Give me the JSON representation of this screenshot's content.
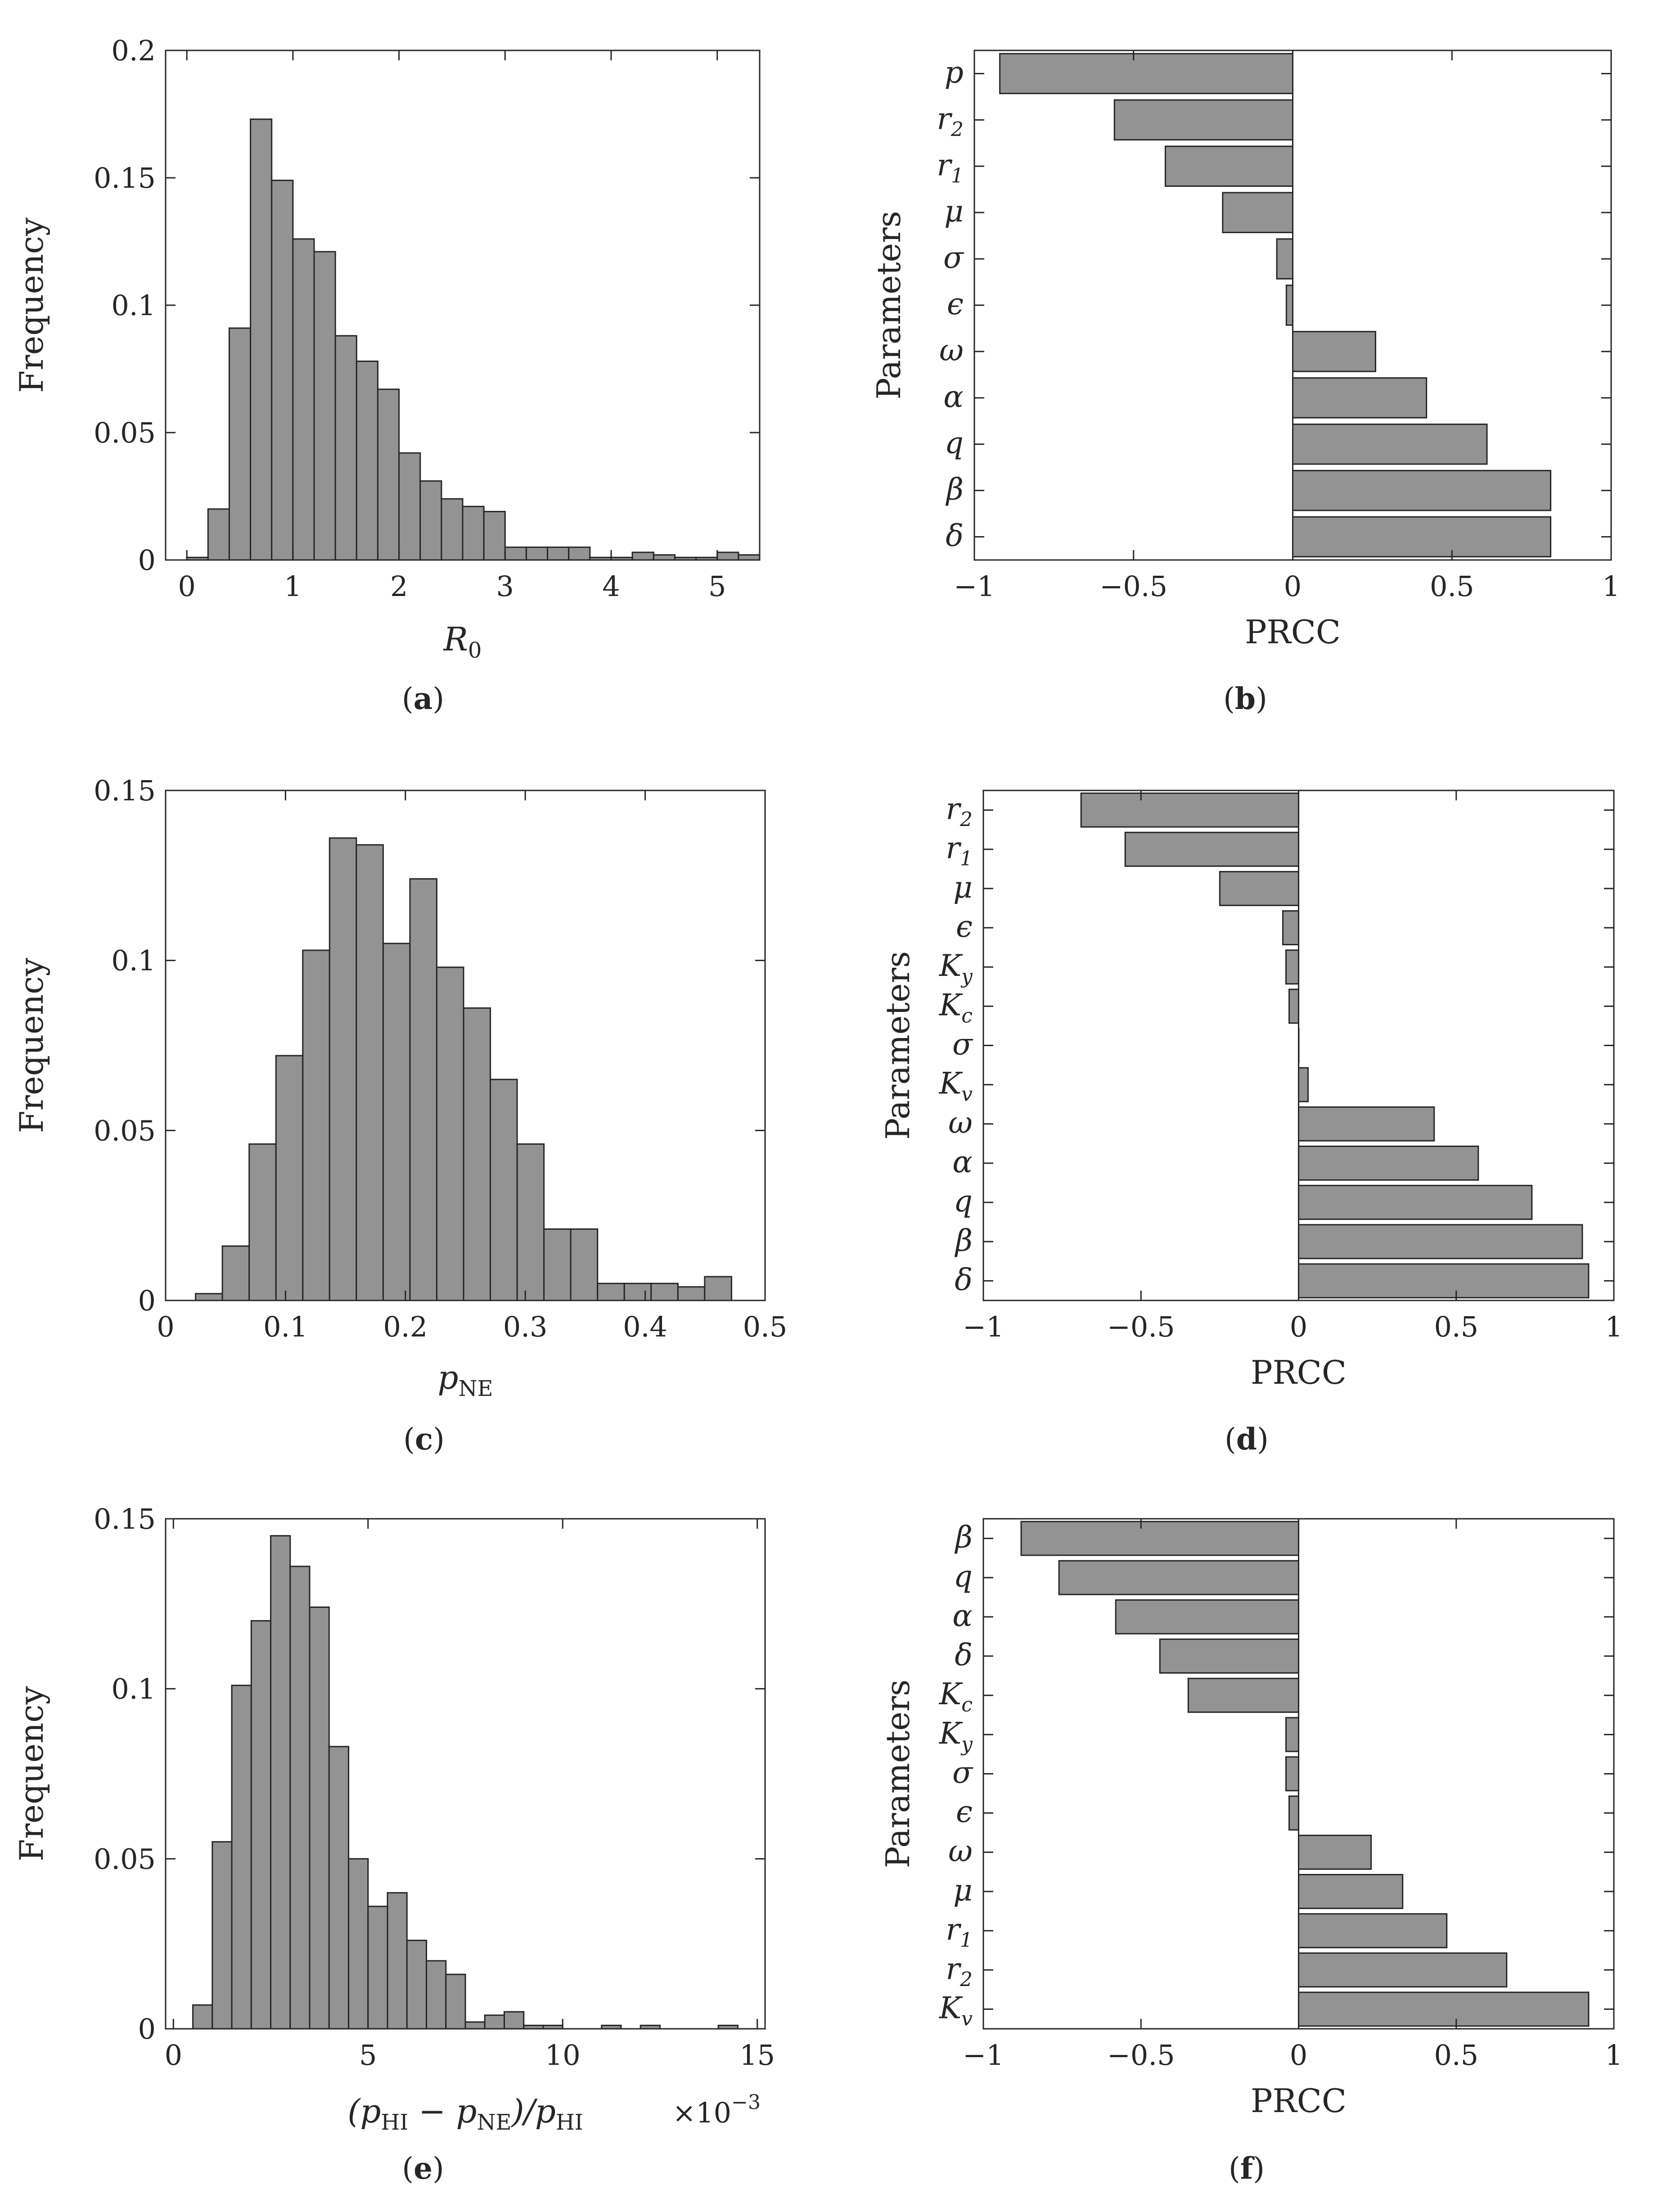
{
  "colors": {
    "bar_fill": "#939393",
    "bar_edge": "#262626",
    "axis": "#262626",
    "text": "#262626"
  },
  "chart_data": [
    {
      "id": "a",
      "type": "histogram",
      "caption_label": "a",
      "ylabel": "Frequency",
      "xlabel": {
        "main": "R",
        "sub": "0"
      },
      "xlim": [
        -0.2,
        5.4
      ],
      "ylim": [
        0,
        0.2
      ],
      "xticks": [
        0,
        1,
        2,
        3,
        4,
        5
      ],
      "xtick_labels": [
        "0",
        "1",
        "2",
        "3",
        "4",
        "5"
      ],
      "yticks": [
        0,
        0.05,
        0.1,
        0.15,
        0.2
      ],
      "ytick_labels": [
        "0",
        "0.05",
        "0.1",
        "0.15",
        "0.2"
      ],
      "bin_start": 0,
      "bin_width": 0.2,
      "values": [
        0.001,
        0.02,
        0.091,
        0.173,
        0.149,
        0.126,
        0.121,
        0.088,
        0.078,
        0.067,
        0.042,
        0.031,
        0.024,
        0.021,
        0.019,
        0.005,
        0.005,
        0.005,
        0.005,
        0.001,
        0.001,
        0.003,
        0.002,
        0.001,
        0.001,
        0.003,
        0.002
      ]
    },
    {
      "id": "b",
      "type": "horizontal_bar",
      "caption_label": "b",
      "xlabel": "PRCC",
      "ylabel": "Parameters",
      "xlim": [
        -1,
        1
      ],
      "xticks": [
        -1,
        -0.5,
        0,
        0.5,
        1
      ],
      "xtick_labels": [
        "−1",
        "−0.5",
        "0",
        "0.5",
        "1"
      ],
      "parameters": [
        {
          "symbol": "p",
          "sub": "",
          "value": -0.92
        },
        {
          "symbol": "r",
          "sub": "2",
          "value": -0.56
        },
        {
          "symbol": "r",
          "sub": "1",
          "value": -0.4
        },
        {
          "symbol": "μ",
          "sub": "",
          "value": -0.22
        },
        {
          "symbol": "σ",
          "sub": "",
          "value": -0.05
        },
        {
          "symbol": "ϵ",
          "sub": "",
          "value": -0.02
        },
        {
          "symbol": "ω",
          "sub": "",
          "value": 0.26
        },
        {
          "symbol": "α",
          "sub": "",
          "value": 0.42
        },
        {
          "symbol": "q",
          "sub": "",
          "value": 0.61
        },
        {
          "symbol": "β",
          "sub": "",
          "value": 0.81
        },
        {
          "symbol": "δ",
          "sub": "",
          "value": 0.81
        }
      ]
    },
    {
      "id": "c",
      "type": "histogram",
      "caption_label": "c",
      "ylabel": "Frequency",
      "xlabel": {
        "main": "p",
        "sub": "NE"
      },
      "xlim": [
        0,
        0.5
      ],
      "ylim": [
        0,
        0.15
      ],
      "xticks": [
        0,
        0.1,
        0.2,
        0.3,
        0.4,
        0.5
      ],
      "xtick_labels": [
        "0",
        "0.1",
        "0.2",
        "0.3",
        "0.4",
        "0.5"
      ],
      "yticks": [
        0,
        0.05,
        0.1,
        0.15
      ],
      "ytick_labels": [
        "0",
        "0.05",
        "0.1",
        "0.15"
      ],
      "bin_start": 0.025,
      "bin_width": 0.02235,
      "values": [
        0.002,
        0.016,
        0.046,
        0.072,
        0.103,
        0.136,
        0.134,
        0.105,
        0.124,
        0.098,
        0.086,
        0.065,
        0.046,
        0.021,
        0.021,
        0.005,
        0.005,
        0.005,
        0.004,
        0.007
      ]
    },
    {
      "id": "d",
      "type": "horizontal_bar",
      "caption_label": "d",
      "xlabel": "PRCC",
      "ylabel": "Parameters",
      "xlim": [
        -1,
        1
      ],
      "xticks": [
        -1,
        -0.5,
        0,
        0.5,
        1
      ],
      "xtick_labels": [
        "−1",
        "−0.5",
        "0",
        "0.5",
        "1"
      ],
      "parameters": [
        {
          "symbol": "r",
          "sub": "2",
          "value": -0.69
        },
        {
          "symbol": "r",
          "sub": "1",
          "value": -0.55
        },
        {
          "symbol": "μ",
          "sub": "",
          "value": -0.25
        },
        {
          "symbol": "ϵ",
          "sub": "",
          "value": -0.05
        },
        {
          "symbol": "K",
          "sub": "y",
          "value": -0.04
        },
        {
          "symbol": "K",
          "sub": "c",
          "value": -0.03
        },
        {
          "symbol": "σ",
          "sub": "",
          "value": 0.0
        },
        {
          "symbol": "K",
          "sub": "v",
          "value": 0.03
        },
        {
          "symbol": "ω",
          "sub": "",
          "value": 0.43
        },
        {
          "symbol": "α",
          "sub": "",
          "value": 0.57
        },
        {
          "symbol": "q",
          "sub": "",
          "value": 0.74
        },
        {
          "symbol": "β",
          "sub": "",
          "value": 0.9
        },
        {
          "symbol": "δ",
          "sub": "",
          "value": 0.92
        }
      ]
    },
    {
      "id": "e",
      "type": "histogram",
      "caption_label": "e",
      "ylabel": "Frequency",
      "xlabel": {
        "part1": "(p",
        "sub1": "HI",
        "part2": " − p",
        "sub2": "NE",
        "part3": ")/p",
        "sub3": "HI"
      },
      "x_multiplier": "×10",
      "x_multiplier_exp": "−3",
      "xlim": [
        -0.2,
        15.2
      ],
      "ylim": [
        0,
        0.15
      ],
      "xticks": [
        0,
        5,
        10,
        15
      ],
      "xtick_labels": [
        "0",
        "5",
        "10",
        "15"
      ],
      "yticks": [
        0,
        0.05,
        0.1,
        0.15
      ],
      "ytick_labels": [
        "0",
        "0.05",
        "0.1",
        "0.15"
      ],
      "bin_start": 0.5,
      "bin_width": 0.5,
      "values": [
        0.007,
        0.055,
        0.101,
        0.12,
        0.145,
        0.136,
        0.124,
        0.083,
        0.05,
        0.036,
        0.04,
        0.026,
        0.02,
        0.016,
        0.002,
        0.004,
        0.005,
        0.001,
        0.001,
        0.0,
        0.0,
        0.001,
        0.0,
        0.001,
        0.0,
        0.0,
        0.0,
        0.001
      ]
    },
    {
      "id": "f",
      "type": "horizontal_bar",
      "caption_label": "f",
      "xlabel": "PRCC",
      "ylabel": "Parameters",
      "xlim": [
        -1,
        1
      ],
      "xticks": [
        -1,
        -0.5,
        0,
        0.5,
        1
      ],
      "xtick_labels": [
        "−1",
        "−0.5",
        "0",
        "0.5",
        "1"
      ],
      "parameters": [
        {
          "symbol": "β",
          "sub": "",
          "value": -0.88
        },
        {
          "symbol": "q",
          "sub": "",
          "value": -0.76
        },
        {
          "symbol": "α",
          "sub": "",
          "value": -0.58
        },
        {
          "symbol": "δ",
          "sub": "",
          "value": -0.44
        },
        {
          "symbol": "K",
          "sub": "c",
          "value": -0.35
        },
        {
          "symbol": "K",
          "sub": "y",
          "value": -0.04
        },
        {
          "symbol": "σ",
          "sub": "",
          "value": -0.04
        },
        {
          "symbol": "ϵ",
          "sub": "",
          "value": -0.03
        },
        {
          "symbol": "ω",
          "sub": "",
          "value": 0.23
        },
        {
          "symbol": "μ",
          "sub": "",
          "value": 0.33
        },
        {
          "symbol": "r",
          "sub": "1",
          "value": 0.47
        },
        {
          "symbol": "r",
          "sub": "2",
          "value": 0.66
        },
        {
          "symbol": "K",
          "sub": "v",
          "value": 0.92
        }
      ]
    }
  ]
}
